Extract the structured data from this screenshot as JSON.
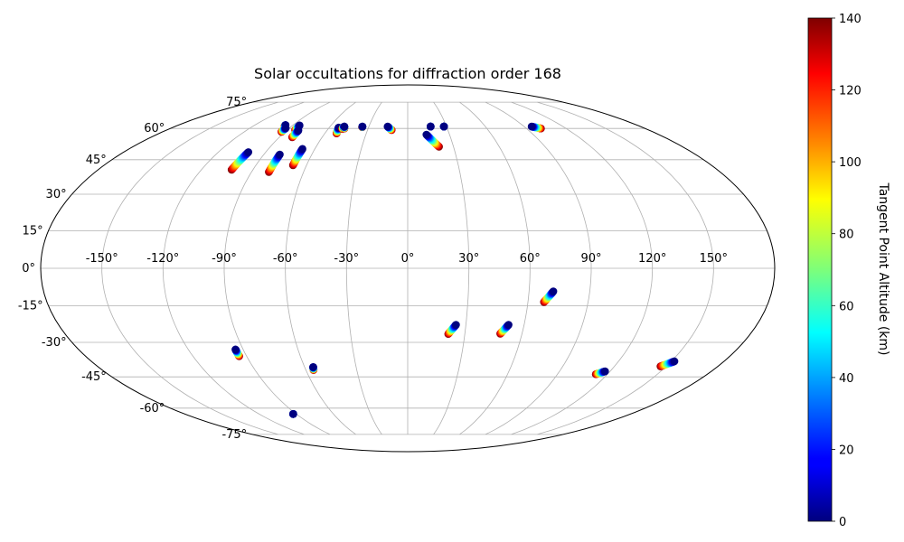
{
  "chart_data": {
    "type": "scatter",
    "projection": "mollweide",
    "title": "Solar occultations for diffraction order 168",
    "xlabel": "",
    "ylabel": "",
    "xlim": [
      -180,
      180
    ],
    "ylim": [
      -90,
      90
    ],
    "grid": true,
    "x_ticks": [
      -150,
      -120,
      -90,
      -60,
      -30,
      0,
      30,
      60,
      90,
      120,
      150
    ],
    "x_tick_labels": [
      "-150°",
      "-120°",
      "-90°",
      "-60°",
      "-30°",
      "0°",
      "30°",
      "60°",
      "90°",
      "120°",
      "150°"
    ],
    "y_ticks": [
      -75,
      -60,
      -45,
      -30,
      -15,
      0,
      15,
      30,
      45,
      60,
      75
    ],
    "y_tick_labels": [
      "-75°",
      "-60°",
      "-45°",
      "-30°",
      "-15°",
      "0°",
      "15°",
      "30°",
      "45°",
      "60°",
      "75°"
    ],
    "colorbar": {
      "label": "Tangent Point Altitude (km)",
      "colormap": "jet",
      "range": [
        0,
        140
      ],
      "ticks": [
        0,
        20,
        40,
        60,
        80,
        100,
        120,
        140
      ],
      "tick_labels": [
        "0",
        "20",
        "40",
        "60",
        "80",
        "100",
        "120",
        "140"
      ]
    },
    "occultations": [
      {
        "start": [
          -95.5,
          61.2
        ],
        "end": [
          -96.0,
          61.8
        ]
      },
      {
        "start": [
          -92.7,
          58.3
        ],
        "end": [
          -92.8,
          60.2
        ]
      },
      {
        "start": [
          -84.0,
          59.2
        ],
        "end": [
          -84.6,
          61.6
        ]
      },
      {
        "start": [
          -81.0,
          55.6
        ],
        "end": [
          -81.3,
          59.0
        ]
      },
      {
        "start": [
          -102.4,
          40.5
        ],
        "end": [
          -101.0,
          48.5
        ]
      },
      {
        "start": [
          -80.0,
          39.5
        ],
        "end": [
          -80.0,
          47.4
        ]
      },
      {
        "start": [
          -68.0,
          42.5
        ],
        "end": [
          -68.0,
          50.0
        ]
      },
      {
        "start": [
          -51.5,
          57.5
        ],
        "end": [
          -52.8,
          60.5
        ]
      },
      {
        "start": [
          -49.5,
          59.8
        ],
        "end": [
          -49.0,
          61.0
        ]
      },
      {
        "start": [
          -48.0,
          60.0
        ],
        "end": [
          -49.0,
          61.0
        ]
      },
      {
        "start": [
          -35.0,
          60.7
        ],
        "end": [
          -35.0,
          61.0
        ]
      },
      {
        "start": [
          -12.0,
          59.2
        ],
        "end": [
          -15.5,
          61.0
        ]
      },
      {
        "start": [
          20.5,
          51.0
        ],
        "end": [
          13.4,
          56.9
        ]
      },
      {
        "start": [
          17.7,
          61.0
        ],
        "end": [
          17.7,
          61.0
        ]
      },
      {
        "start": [
          28.0,
          61.0
        ],
        "end": [
          28.0,
          61.0
        ]
      },
      {
        "start": [
          101.0,
          60.0
        ],
        "end": [
          95.8,
          61.0
        ]
      },
      {
        "start": [
          -94.2,
          -35.9
        ],
        "end": [
          -94.2,
          -33.0
        ]
      },
      {
        "start": [
          -55.5,
          -41.9
        ],
        "end": [
          -55.0,
          -40.6
        ]
      },
      {
        "start": [
          -92.5,
          -63.1
        ],
        "end": [
          -92.5,
          -63.1
        ]
      },
      {
        "start": [
          21.3,
          -26.5
        ],
        "end": [
          24.9,
          -22.7
        ]
      },
      {
        "start": [
          48.6,
          -26.4
        ],
        "end": [
          52.0,
          -22.7
        ]
      },
      {
        "start": [
          68.0,
          -13.5
        ],
        "end": [
          72.0,
          -9.2
        ]
      },
      {
        "start": [
          113.0,
          -43.8
        ],
        "end": [
          117.0,
          -42.5
        ]
      },
      {
        "start": [
          146.7,
          -40.3
        ],
        "end": [
          151.8,
          -38.1
        ]
      }
    ]
  }
}
